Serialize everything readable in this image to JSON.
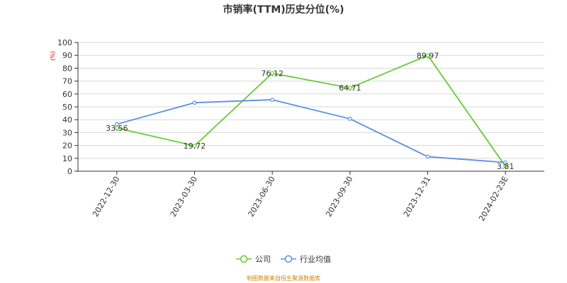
{
  "chart_data": {
    "type": "line",
    "title": "市销率(TTM)历史分位(%)",
    "unit_label": "(%)",
    "ylim": [
      0,
      100
    ],
    "yticks": [
      0,
      10,
      20,
      30,
      40,
      50,
      60,
      70,
      80,
      90,
      100
    ],
    "categories": [
      "2022-12-30",
      "2023-03-30",
      "2023-06-30",
      "2023-09-30",
      "2023-12-31",
      "2024-02-23E"
    ],
    "grid": true,
    "legend_position": "bottom-center",
    "series": [
      {
        "name": "公司",
        "color": "#66cc33",
        "values": [
          33.56,
          19.72,
          76.12,
          64.71,
          89.97,
          3.81
        ],
        "labels": [
          "33.56",
          "19.72",
          "76.12",
          "64.71",
          "89.97",
          "3.81"
        ],
        "show_labels": true
      },
      {
        "name": "行业均值",
        "color": "#5b8ee6",
        "values": [
          36.5,
          53.2,
          55.5,
          40.7,
          11.3,
          6.8
        ],
        "show_labels": false
      }
    ],
    "source": "制图数据来自恒生聚源数据库"
  }
}
